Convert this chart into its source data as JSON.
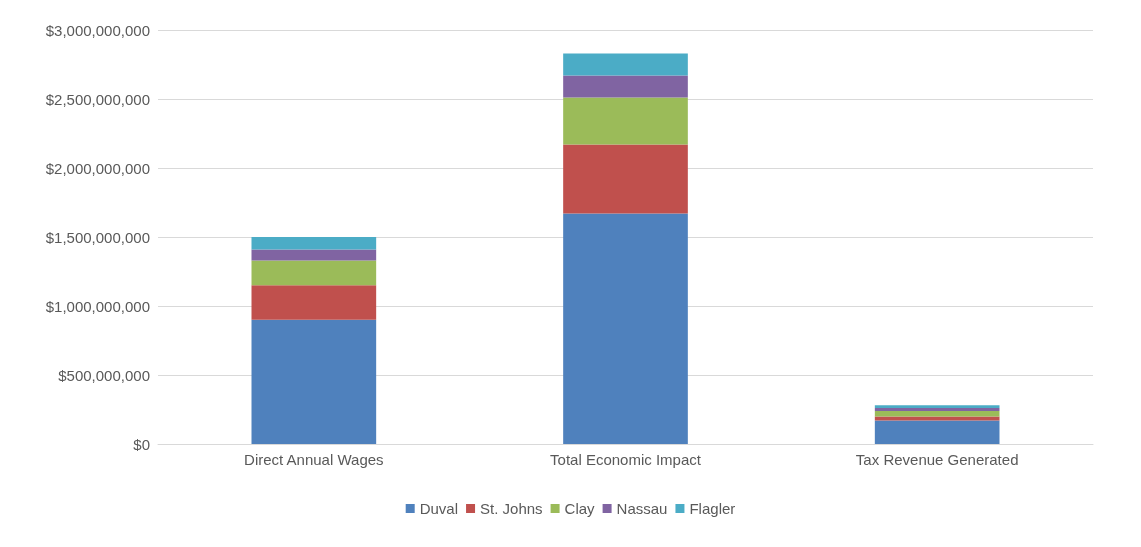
{
  "chart_data": {
    "type": "bar",
    "stacked": true,
    "categories": [
      "Direct Annual Wages",
      "Total Economic Impact",
      "Tax Revenue Generated"
    ],
    "series": [
      {
        "name": "Duval",
        "color": "#4f81bd",
        "values": [
          900000000,
          1670000000,
          170000000
        ]
      },
      {
        "name": "St. Johns",
        "color": "#c0504d",
        "values": [
          250000000,
          500000000,
          30000000
        ]
      },
      {
        "name": "Clay",
        "color": "#9bbb59",
        "values": [
          180000000,
          340000000,
          40000000
        ]
      },
      {
        "name": "Nassau",
        "color": "#8064a2",
        "values": [
          80000000,
          160000000,
          20000000
        ]
      },
      {
        "name": "Flagler",
        "color": "#4bacc6",
        "values": [
          90000000,
          160000000,
          20000000
        ]
      }
    ],
    "ylim": [
      0,
      3000000000
    ],
    "yticks": [
      {
        "value": 0,
        "label": "$0"
      },
      {
        "value": 500000000,
        "label": "$500,000,000"
      },
      {
        "value": 1000000000,
        "label": "$1,000,000,000"
      },
      {
        "value": 1500000000,
        "label": "$1,500,000,000"
      },
      {
        "value": 2000000000,
        "label": "$2,000,000,000"
      },
      {
        "value": 2500000000,
        "label": "$2,500,000,000"
      },
      {
        "value": 3000000000,
        "label": "$3,000,000,000"
      }
    ],
    "grid": true,
    "legend": "bottom"
  }
}
